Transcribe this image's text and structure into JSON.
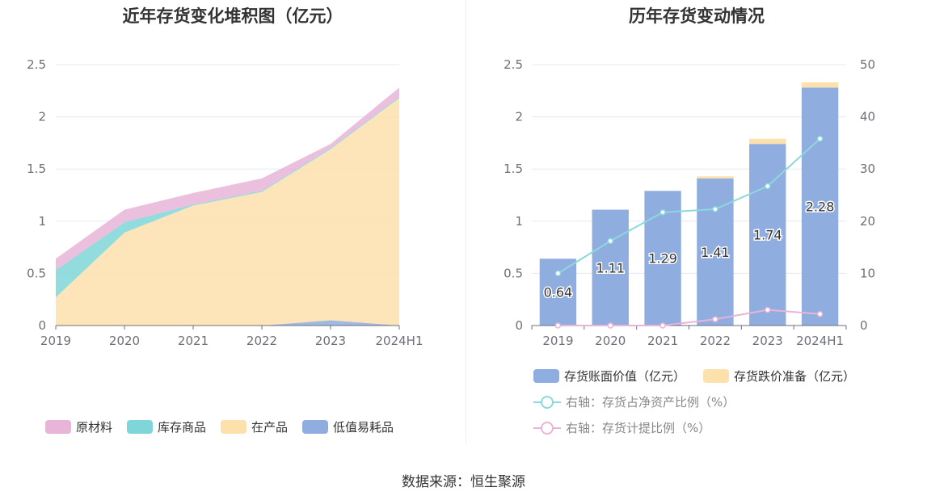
{
  "chart_data": [
    {
      "type": "area",
      "title": "近年存货变化堆积图（亿元）",
      "x": [
        "2019",
        "2020",
        "2021",
        "2022",
        "2023",
        "2024H1"
      ],
      "ylim": [
        0,
        2.5
      ],
      "yticks": [
        "0",
        "0.5",
        "1",
        "1.5",
        "2",
        "2.5"
      ],
      "stacked": true,
      "legend_position": "bottom",
      "series": [
        {
          "name": "原材料",
          "color": "#e8b4d8",
          "values": [
            0.11,
            0.12,
            0.11,
            0.12,
            0.04,
            0.09
          ]
        },
        {
          "name": "库存商品",
          "color": "#7fd6d8",
          "values": [
            0.26,
            0.1,
            0.01,
            0.01,
            0.01,
            0.01
          ]
        },
        {
          "name": "在产品",
          "color": "#fde1ad",
          "values": [
            0.27,
            0.89,
            1.15,
            1.28,
            1.64,
            2.18
          ]
        },
        {
          "name": "低值易耗品",
          "color": "#8fadde",
          "values": [
            0.0,
            0.0,
            0.0,
            0.0,
            0.05,
            0.0
          ]
        }
      ]
    },
    {
      "type": "bar",
      "title": "历年存货变动情况",
      "categories": [
        "2019",
        "2020",
        "2021",
        "2022",
        "2023",
        "2024H1"
      ],
      "ylim": [
        0,
        2.5
      ],
      "yticks": [
        "0",
        "0.5",
        "1",
        "1.5",
        "2",
        "2.5"
      ],
      "y2lim": [
        0,
        50
      ],
      "y2ticks": [
        "0",
        "10",
        "20",
        "30",
        "40",
        "50"
      ],
      "stacked": true,
      "legend_position": "bottom",
      "series": [
        {
          "name": "存货账面价值（亿元）",
          "kind": "bar",
          "color": "#8fadde",
          "values": [
            0.64,
            1.11,
            1.29,
            1.41,
            1.74,
            2.28
          ],
          "labels": [
            "0.64",
            "1.11",
            "1.29",
            "1.41",
            "1.74",
            "2.28"
          ]
        },
        {
          "name": "存货跌价准备（亿元）",
          "kind": "bar",
          "color": "#fde1ad",
          "values": [
            0.0,
            0.0,
            0.0,
            0.02,
            0.05,
            0.05
          ]
        },
        {
          "name": "右轴：存货占净资产比例（%）",
          "kind": "line",
          "axis": "right",
          "color": "#8cd8dc",
          "values": [
            10.0,
            16.2,
            21.7,
            22.3,
            26.7,
            35.8
          ]
        },
        {
          "name": "右轴：存货计提比例（%）",
          "kind": "line",
          "axis": "right",
          "color": "#e8b4d8",
          "values": [
            0.0,
            0.0,
            0.0,
            1.2,
            3.0,
            2.2
          ]
        }
      ]
    }
  ],
  "footer": "数据来源：恒生聚源"
}
